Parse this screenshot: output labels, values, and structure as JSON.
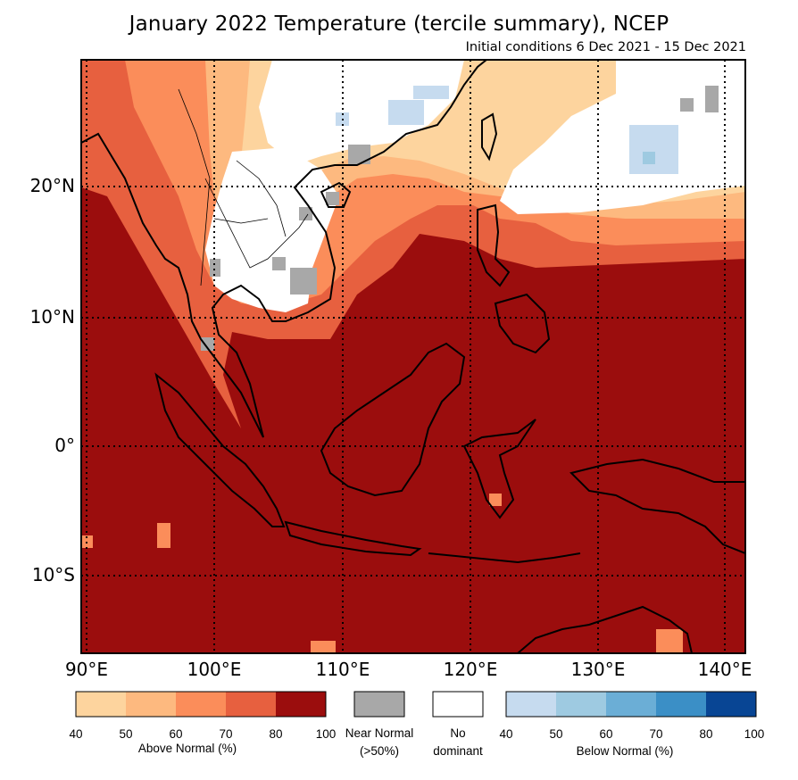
{
  "title": "January 2022 Temperature (tercile summary), NCEP",
  "subtitle": "Initial conditions 6 Dec 2021 - 15 Dec 2021",
  "lat_labels": [
    "20°N",
    "10°N",
    "0°",
    "10°S"
  ],
  "lon_labels": [
    "90°E",
    "100°E",
    "110°E",
    "120°E",
    "130°E",
    "140°E"
  ],
  "legend": {
    "above": {
      "label": "Above Normal (%)",
      "ticks": [
        "40",
        "50",
        "60",
        "70",
        "80",
        "100"
      ],
      "colors": [
        "#fdd49e",
        "#fdb97f",
        "#fb8d5a",
        "#e7603f",
        "#9b0d0d"
      ]
    },
    "near": {
      "label_line1": "Near Normal",
      "label_line2": "(>50%)",
      "color": "#a8a8a8"
    },
    "none": {
      "label_line1": "No",
      "label_line2": "dominant",
      "color": "#ffffff"
    },
    "below": {
      "label": "Below Normal (%)",
      "ticks": [
        "40",
        "50",
        "60",
        "70",
        "80",
        "100"
      ],
      "colors": [
        "#c6dbef",
        "#9ecae1",
        "#6baed6",
        "#3b8fc6",
        "#084594"
      ]
    }
  },
  "map_colors": {
    "dominant_above": "#9b0d0d",
    "above_70": "#e7603f",
    "above_60": "#fb8d5a",
    "above_50": "#fdb97f",
    "above_40": "#fdd49e",
    "near_normal": "#a8a8a8",
    "below_40": "#c6dbef",
    "below_50": "#9ecae1"
  }
}
